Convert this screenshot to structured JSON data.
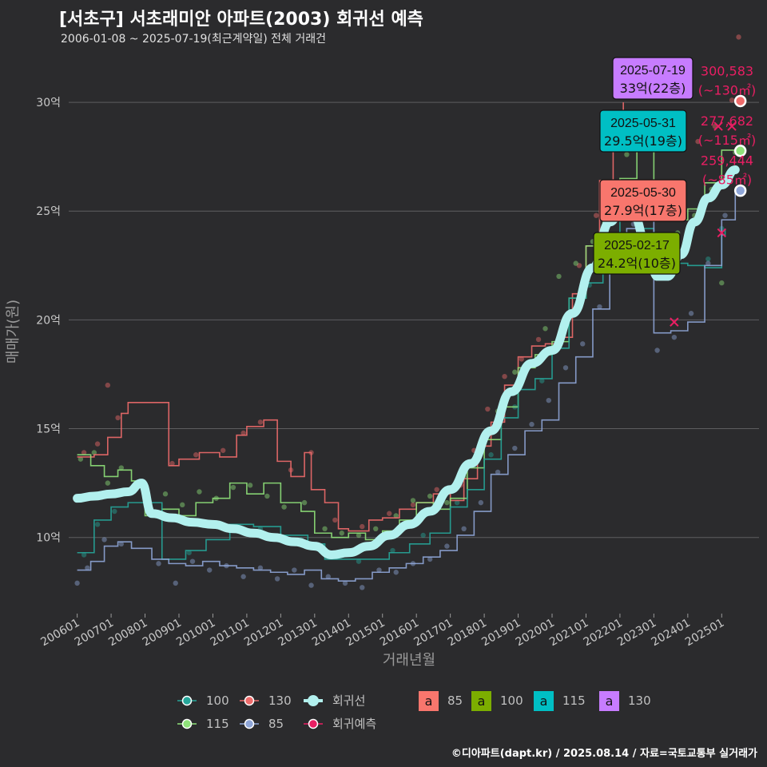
{
  "header": {
    "title": "[서초구] 서초래미안 아파트(2003) 회귀선 예측",
    "subtitle": "2006-01-08 ~ 2025-07-19(최근계약일) 전체 거래건"
  },
  "footer": {
    "text": "©디아파트(dapt.kr) / 2025.08.14 / 자료=국토교통부 실거래가"
  },
  "colors": {
    "background": "#2b2b2d",
    "grid": "#5e5e60",
    "s100": "#26a69a",
    "s130": "#ef6b6b",
    "s115": "#8fe27a",
    "s85": "#8fa6d8",
    "regression": "#b2f0ee",
    "forecast": "#e91e63",
    "badge85": "#f8766d",
    "badge100": "#7cae00",
    "badge115": "#00bfc4",
    "badge130": "#c77cff"
  },
  "chart_data": {
    "type": "line",
    "xlabel": "거래년월",
    "ylabel": "매매가(원)",
    "x_range": [
      "2006-01",
      "2025-07"
    ],
    "ylim": [
      6.5,
      32.5
    ],
    "x_ticks": [
      "200601",
      "200701",
      "200801",
      "200901",
      "201001",
      "201101",
      "201201",
      "201301",
      "201401",
      "201501",
      "201601",
      "201701",
      "201801",
      "201901",
      "202001",
      "202101",
      "202201",
      "202301",
      "202401",
      "202501"
    ],
    "y_ticks": [
      {
        "value": 10,
        "label": "10억"
      },
      {
        "value": 15,
        "label": "15억"
      },
      {
        "value": 20,
        "label": "20억"
      },
      {
        "value": 25,
        "label": "25억"
      },
      {
        "value": 30,
        "label": "30억"
      }
    ],
    "grid": true,
    "legend_position": "bottom",
    "series": [
      {
        "name": "130",
        "key": "s130",
        "x": [
          2006.0,
          2006.5,
          2006.9,
          2007.3,
          2007.5,
          2008.7,
          2009.0,
          2009.6,
          2010.2,
          2010.7,
          2011.0,
          2011.5,
          2011.9,
          2012.3,
          2012.7,
          2012.9,
          2013.3,
          2013.7,
          2014.0,
          2014.6,
          2015.0,
          2015.5,
          2016.0,
          2016.5,
          2017.0,
          2017.4,
          2017.8,
          2018.2,
          2018.6,
          2019.0,
          2019.4,
          2019.8,
          2020.2,
          2020.6,
          2021.0,
          2021.4,
          2021.8,
          2022.1
        ],
        "y": [
          13.7,
          13.8,
          14.6,
          15.7,
          16.2,
          13.3,
          13.6,
          13.9,
          13.7,
          14.7,
          15.1,
          15.4,
          13.5,
          12.8,
          13.9,
          12.2,
          11.6,
          10.4,
          10.3,
          10.8,
          10.9,
          11.3,
          11.6,
          12.0,
          11.7,
          12.7,
          14.2,
          15.3,
          17.0,
          18.3,
          18.8,
          18.9,
          19.2,
          21.2,
          23.4,
          26.4,
          28.4,
          30.0
        ]
      },
      {
        "name": "115",
        "key": "s115",
        "x": [
          2006.0,
          2006.4,
          2006.8,
          2007.2,
          2007.6,
          2008.0,
          2008.5,
          2009.0,
          2009.5,
          2010.0,
          2010.5,
          2011.0,
          2011.5,
          2012.0,
          2012.6,
          2013.0,
          2013.5,
          2014.0,
          2014.5,
          2015.0,
          2015.5,
          2016.0,
          2016.5,
          2017.0,
          2017.5,
          2018.0,
          2018.5,
          2019.0,
          2019.5,
          2020.0,
          2020.5,
          2021.0,
          2021.5,
          2022.0,
          2022.5,
          2023.0,
          2023.5,
          2024.0,
          2024.5,
          2025.0,
          2025.5
        ],
        "y": [
          13.8,
          13.3,
          12.8,
          13.1,
          12.6,
          11.0,
          11.3,
          11.0,
          11.6,
          11.8,
          12.5,
          12.0,
          12.5,
          11.6,
          11.2,
          10.2,
          10.0,
          10.2,
          9.9,
          10.3,
          10.8,
          11.6,
          11.3,
          11.8,
          13.2,
          14.5,
          16.0,
          17.8,
          18.4,
          19.0,
          21.0,
          23.4,
          24.7,
          26.5,
          27.9,
          25.2,
          24.6,
          25.1,
          26.3,
          27.8,
          27.7
        ]
      },
      {
        "name": "100",
        "key": "s100",
        "x": [
          2006.0,
          2006.5,
          2007.0,
          2007.5,
          2008.5,
          2009.2,
          2009.8,
          2010.5,
          2011.2,
          2012.0,
          2012.8,
          2013.3,
          2014.0,
          2014.6,
          2015.2,
          2015.8,
          2016.4,
          2017.0,
          2017.5,
          2018.0,
          2018.5,
          2019.0,
          2019.5,
          2020.0,
          2020.5,
          2021.0,
          2021.5,
          2022.0,
          2022.5,
          2023.0,
          2023.5,
          2024.0,
          2024.5,
          2025.0,
          2025.1
        ],
        "y": [
          9.3,
          10.8,
          11.4,
          11.6,
          9.0,
          9.4,
          9.9,
          10.6,
          10.5,
          10.1,
          9.7,
          9.0,
          9.0,
          9.0,
          9.3,
          9.7,
          10.2,
          11.4,
          12.2,
          13.6,
          15.5,
          16.8,
          17.3,
          18.7,
          21.0,
          21.7,
          23.5,
          25.4,
          24.2,
          22.6,
          22.6,
          22.5,
          22.4,
          23.9,
          24.2
        ]
      },
      {
        "name": "85",
        "key": "s85",
        "x": [
          2006.0,
          2006.4,
          2006.8,
          2007.2,
          2007.6,
          2008.2,
          2008.7,
          2009.2,
          2009.7,
          2010.2,
          2010.7,
          2011.2,
          2011.7,
          2012.2,
          2012.7,
          2013.2,
          2013.7,
          2014.2,
          2014.7,
          2015.2,
          2015.7,
          2016.2,
          2016.7,
          2017.2,
          2017.7,
          2018.2,
          2018.7,
          2019.2,
          2019.7,
          2020.2,
          2020.7,
          2021.2,
          2021.7,
          2022.2,
          2022.6,
          2023.0,
          2023.5,
          2024.0,
          2024.5,
          2025.0,
          2025.4
        ],
        "y": [
          8.5,
          8.9,
          9.6,
          9.8,
          9.5,
          9.0,
          8.8,
          8.7,
          8.9,
          8.7,
          8.6,
          8.5,
          8.4,
          8.3,
          8.5,
          8.1,
          8.0,
          8.1,
          8.4,
          8.6,
          8.8,
          9.1,
          9.4,
          10.1,
          11.2,
          12.9,
          13.8,
          14.9,
          15.4,
          17.1,
          18.3,
          20.5,
          22.8,
          24.2,
          25.0,
          19.4,
          19.5,
          19.9,
          22.5,
          24.6,
          25.9
        ]
      },
      {
        "name": "회귀선",
        "key": "regression",
        "x": [
          2006.0,
          2006.5,
          2007.0,
          2007.5,
          2007.9,
          2008.2,
          2008.8,
          2009.4,
          2010.0,
          2010.6,
          2011.2,
          2011.8,
          2012.4,
          2013.0,
          2013.5,
          2014.0,
          2014.6,
          2015.2,
          2015.8,
          2016.4,
          2017.0,
          2017.6,
          2018.2,
          2018.8,
          2019.4,
          2020.0,
          2020.6,
          2021.2,
          2021.7,
          2022.1,
          2022.4,
          2022.8,
          2023.1,
          2023.4,
          2023.8,
          2024.2,
          2024.6,
          2025.0,
          2025.4
        ],
        "y": [
          11.8,
          11.9,
          12.0,
          12.1,
          12.5,
          11.1,
          10.9,
          10.7,
          10.6,
          10.4,
          10.2,
          10.0,
          9.8,
          9.6,
          9.2,
          9.3,
          9.6,
          10.1,
          10.6,
          11.2,
          12.2,
          13.4,
          14.9,
          16.7,
          18.0,
          18.6,
          20.3,
          22.4,
          24.5,
          25.3,
          24.8,
          23.4,
          22.0,
          22.0,
          23.0,
          24.5,
          25.6,
          26.2,
          26.9
        ]
      }
    ],
    "scatter": [
      {
        "key": "s130",
        "points": [
          [
            2006.2,
            13.9
          ],
          [
            2006.6,
            14.3
          ],
          [
            2006.9,
            17.0
          ],
          [
            2007.2,
            15.5
          ],
          [
            2008.8,
            13.4
          ],
          [
            2009.5,
            13.8
          ],
          [
            2010.3,
            14.0
          ],
          [
            2010.9,
            14.8
          ],
          [
            2011.4,
            15.3
          ],
          [
            2012.3,
            13.1
          ],
          [
            2012.9,
            13.9
          ],
          [
            2013.6,
            10.8
          ],
          [
            2014.4,
            10.5
          ],
          [
            2015.2,
            11.1
          ],
          [
            2015.9,
            11.5
          ],
          [
            2016.6,
            12.2
          ],
          [
            2017.3,
            12.4
          ],
          [
            2017.7,
            14.0
          ],
          [
            2018.1,
            15.9
          ],
          [
            2018.6,
            17.4
          ],
          [
            2019.1,
            18.2
          ],
          [
            2019.6,
            19.1
          ],
          [
            2020.3,
            19.5
          ],
          [
            2020.8,
            22.5
          ],
          [
            2021.3,
            24.8
          ],
          [
            2021.7,
            26.2
          ],
          [
            2022.0,
            28.5
          ],
          [
            2024.3,
            28.2
          ],
          [
            2024.8,
            28.9
          ],
          [
            2025.3,
            30.1
          ],
          [
            2025.5,
            33.0
          ]
        ]
      },
      {
        "key": "s115",
        "points": [
          [
            2006.1,
            13.6
          ],
          [
            2006.5,
            13.9
          ],
          [
            2006.9,
            12.5
          ],
          [
            2007.3,
            13.2
          ],
          [
            2008.2,
            11.2
          ],
          [
            2008.6,
            12.0
          ],
          [
            2009.1,
            11.5
          ],
          [
            2009.6,
            12.1
          ],
          [
            2010.1,
            11.8
          ],
          [
            2010.6,
            12.3
          ],
          [
            2011.1,
            12.4
          ],
          [
            2011.6,
            11.9
          ],
          [
            2012.1,
            11.4
          ],
          [
            2012.7,
            11.6
          ],
          [
            2013.3,
            10.4
          ],
          [
            2013.8,
            10.2
          ],
          [
            2014.3,
            10.1
          ],
          [
            2014.8,
            10.4
          ],
          [
            2015.4,
            11.0
          ],
          [
            2015.9,
            11.7
          ],
          [
            2016.4,
            11.9
          ],
          [
            2016.9,
            11.6
          ],
          [
            2017.4,
            12.8
          ],
          [
            2017.9,
            14.4
          ],
          [
            2018.4,
            15.8
          ],
          [
            2018.9,
            17.6
          ],
          [
            2019.3,
            18.0
          ],
          [
            2019.8,
            19.6
          ],
          [
            2020.2,
            22.0
          ],
          [
            2020.7,
            22.6
          ],
          [
            2021.2,
            23.6
          ],
          [
            2021.8,
            25.2
          ],
          [
            2022.2,
            27.6
          ],
          [
            2023.7,
            24.0
          ],
          [
            2024.2,
            24.8
          ],
          [
            2024.7,
            26.0
          ],
          [
            2025.0,
            21.7
          ],
          [
            2025.4,
            27.7
          ]
        ]
      },
      {
        "key": "s100",
        "points": [
          [
            2006.2,
            9.2
          ],
          [
            2006.6,
            10.6
          ],
          [
            2007.1,
            11.2
          ],
          [
            2009.3,
            9.3
          ],
          [
            2010.4,
            10.5
          ],
          [
            2011.4,
            10.4
          ],
          [
            2012.6,
            9.9
          ],
          [
            2013.5,
            9.1
          ],
          [
            2014.3,
            8.9
          ],
          [
            2015.3,
            9.4
          ],
          [
            2016.2,
            10.1
          ],
          [
            2017.2,
            11.6
          ],
          [
            2018.2,
            13.8
          ],
          [
            2018.9,
            16.0
          ],
          [
            2019.7,
            17.2
          ],
          [
            2020.4,
            20.1
          ],
          [
            2021.1,
            21.6
          ],
          [
            2021.9,
            23.9
          ],
          [
            2022.7,
            23.8
          ],
          [
            2023.6,
            22.4
          ],
          [
            2024.6,
            22.8
          ],
          [
            2025.0,
            24.2
          ]
        ]
      },
      {
        "key": "s85",
        "points": [
          [
            2006.0,
            7.9
          ],
          [
            2006.3,
            8.6
          ],
          [
            2006.8,
            9.9
          ],
          [
            2007.3,
            9.7
          ],
          [
            2008.4,
            8.8
          ],
          [
            2008.9,
            7.9
          ],
          [
            2009.4,
            8.9
          ],
          [
            2009.9,
            8.5
          ],
          [
            2010.4,
            8.7
          ],
          [
            2010.9,
            8.2
          ],
          [
            2011.4,
            8.6
          ],
          [
            2011.9,
            8.1
          ],
          [
            2012.4,
            8.5
          ],
          [
            2012.9,
            7.8
          ],
          [
            2013.4,
            8.2
          ],
          [
            2013.9,
            7.9
          ],
          [
            2014.4,
            7.7
          ],
          [
            2014.9,
            8.5
          ],
          [
            2015.4,
            8.4
          ],
          [
            2015.9,
            8.8
          ],
          [
            2016.4,
            9.0
          ],
          [
            2016.9,
            9.6
          ],
          [
            2017.4,
            10.4
          ],
          [
            2017.9,
            11.6
          ],
          [
            2018.4,
            13.0
          ],
          [
            2018.9,
            14.1
          ],
          [
            2019.4,
            15.2
          ],
          [
            2019.9,
            16.3
          ],
          [
            2020.4,
            17.8
          ],
          [
            2020.9,
            18.9
          ],
          [
            2021.4,
            20.6
          ],
          [
            2021.9,
            22.9
          ],
          [
            2022.4,
            24.4
          ],
          [
            2023.1,
            18.6
          ],
          [
            2023.6,
            19.2
          ],
          [
            2024.1,
            20.3
          ],
          [
            2024.6,
            22.6
          ],
          [
            2025.1,
            24.8
          ]
        ]
      }
    ],
    "forecast_points": [
      {
        "x": 2025.55,
        "y": 30.06,
        "value": "300,583",
        "area": "(~130㎡)",
        "key": "s130"
      },
      {
        "x": 2025.55,
        "y": 27.77,
        "value": "277,682",
        "area": "(~115㎡)",
        "key": "s115"
      },
      {
        "x": 2025.55,
        "y": 25.94,
        "value": "259,444",
        "area": "(~85㎡)",
        "key": "s85"
      }
    ],
    "forecast_crosses": [
      [
        2023.6,
        19.9
      ],
      [
        2024.9,
        28.9
      ],
      [
        2025.0,
        24.0
      ],
      [
        2025.3,
        28.9
      ]
    ],
    "annotations": [
      {
        "date": "2025-07-19",
        "price": "33억(22층)",
        "key": "badge130",
        "x": 2025.55,
        "y": 33.0
      },
      {
        "date": "2025-05-31",
        "price": "29.5억(19층)",
        "key": "badge115",
        "x": 2025.41,
        "y": 29.5
      },
      {
        "date": "2025-05-30",
        "price": "27.9억(17층)",
        "key": "badge85",
        "x": 2025.41,
        "y": 27.9
      },
      {
        "date": "2025-02-17",
        "price": "24.2억(10층)",
        "key": "badge100",
        "x": 2025.13,
        "y": 24.2
      }
    ]
  },
  "legend": {
    "lines": [
      {
        "label": "100",
        "key": "s100"
      },
      {
        "label": "130",
        "key": "s130"
      },
      {
        "label": "회귀선",
        "key": "regression"
      },
      {
        "label": "115",
        "key": "s115"
      },
      {
        "label": "85",
        "key": "s85"
      },
      {
        "label": "회귀예측",
        "key": "forecast"
      }
    ],
    "badges": [
      {
        "glyph": "a",
        "label": "85",
        "key": "badge85"
      },
      {
        "glyph": "a",
        "label": "100",
        "key": "badge100"
      },
      {
        "glyph": "a",
        "label": "115",
        "key": "badge115"
      },
      {
        "glyph": "a",
        "label": "130",
        "key": "badge130"
      }
    ]
  }
}
